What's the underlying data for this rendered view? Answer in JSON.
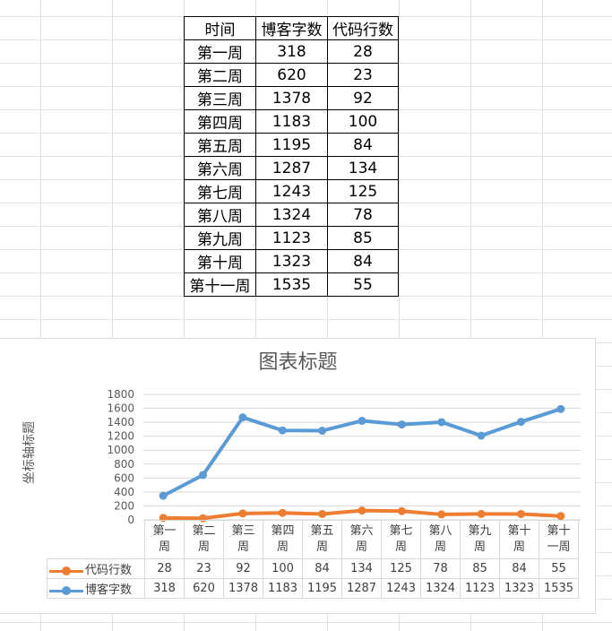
{
  "sheet": {
    "headers": [
      "时间",
      "博客字数",
      "代码行数"
    ],
    "rows": [
      [
        "第一周",
        "318",
        "28"
      ],
      [
        "第二周",
        "620",
        "23"
      ],
      [
        "第三周",
        "1378",
        "92"
      ],
      [
        "第四周",
        "1183",
        "100"
      ],
      [
        "第五周",
        "1195",
        "84"
      ],
      [
        "第六周",
        "1287",
        "134"
      ],
      [
        "第七周",
        "1243",
        "125"
      ],
      [
        "第八周",
        "1324",
        "78"
      ],
      [
        "第九周",
        "1123",
        "85"
      ],
      [
        "第十周",
        "1323",
        "84"
      ],
      [
        "第十一周",
        "1535",
        "55"
      ]
    ]
  },
  "chart_data": {
    "type": "line",
    "title": "图表标题",
    "ylabel": "坐标轴标题",
    "xlabel": "",
    "stacked": true,
    "categories": [
      [
        "第一",
        "周"
      ],
      [
        "第二",
        "周"
      ],
      [
        "第三",
        "周"
      ],
      [
        "第四",
        "周"
      ],
      [
        "第五",
        "周"
      ],
      [
        "第六",
        "周"
      ],
      [
        "第七",
        "周"
      ],
      [
        "第八",
        "周"
      ],
      [
        "第九",
        "周"
      ],
      [
        "第十",
        "周"
      ],
      [
        "第十",
        "一周"
      ]
    ],
    "yticks": [
      "0",
      "200",
      "400",
      "600",
      "800",
      "1000",
      "1200",
      "1400",
      "1600",
      "1800"
    ],
    "ylim": [
      0,
      1800
    ],
    "grid": true,
    "legend": "bottom-table",
    "series": [
      {
        "name": "代码行数",
        "color": "#ED7D31",
        "values": [
          28,
          23,
          92,
          100,
          84,
          134,
          125,
          78,
          85,
          84,
          55
        ]
      },
      {
        "name": "博客字数",
        "color": "#5B9BD5",
        "values": [
          318,
          620,
          1378,
          1183,
          1195,
          1287,
          1243,
          1324,
          1123,
          1323,
          1535
        ]
      }
    ]
  }
}
